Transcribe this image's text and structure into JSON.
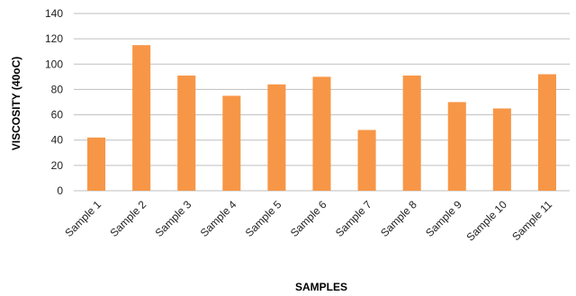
{
  "chart_data": {
    "type": "bar",
    "title": "",
    "xlabel": "SAMPLES",
    "ylabel": "VISCOSITY (40oC)",
    "categories": [
      "Sample 1",
      "Sample 2",
      "Sample 3",
      "Sample 4",
      "Sample 5",
      "Sample 6",
      "Sample 7",
      "Sample 8",
      "Sample 9",
      "Sample 10",
      "Sample 11"
    ],
    "values": [
      42,
      115,
      91,
      75,
      84,
      90,
      48,
      91,
      70,
      65,
      92
    ],
    "ylim": [
      0,
      140
    ],
    "yticks": [
      0,
      20,
      40,
      60,
      80,
      100,
      120,
      140
    ],
    "grid": true,
    "legend": "none",
    "bar_color": "#f79646",
    "grid_color": "#bfbfbf"
  }
}
